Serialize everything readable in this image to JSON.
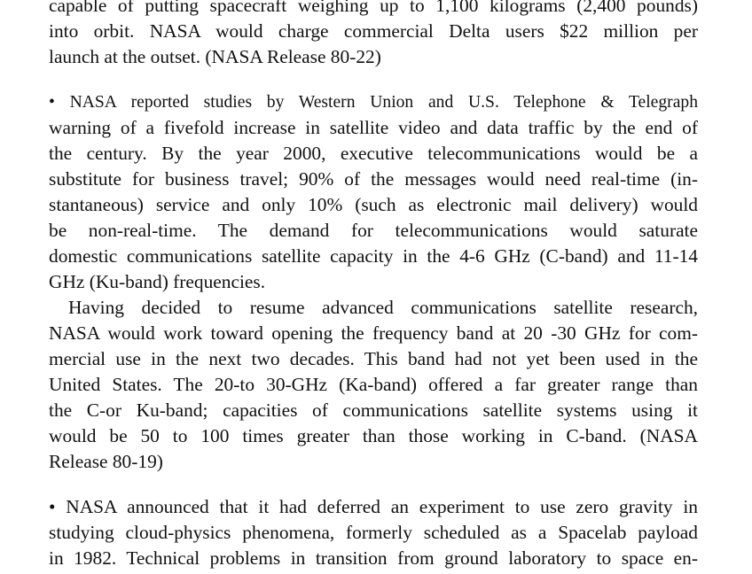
{
  "paragraphs": [
    {
      "lines": [
        "capable of putting spacecraft weighing up to 1,100 kilograms (2,400 pounds)",
        "into orbit. NASA would charge commercial Delta users $22 million per",
        "launch at the outset. (NASA Release 80-22)"
      ]
    },
    {
      "lines": [
        "• NASA reported studies by Western Union and U.S. Telephone & Telegraph",
        "warning of a fivefold increase in satellite video and data traffic by the end of",
        "the century. By the year 2000, executive telecommunications would be a",
        "substitute for business travel; 90% of the messages would need real-time (in-",
        "stantaneous) service and only 10% (such as electronic mail delivery) would",
        "be non-real-time. The demand for telecommunications would saturate",
        "domestic communications satellite capacity in the 4-6 GHz (C-band) and 11-14",
        "GHz (Ku-band) frequencies."
      ]
    },
    {
      "lines": [
        "Having decided to resume advanced communications satellite research,",
        "NASA would work toward opening the frequency band at 20 -30 GHz for com-",
        "mercial use in the next two decades. This band had not yet been used in the",
        "United States. The 20-to 30-GHz (Ka-band) offered a far greater range than",
        "the C-or Ku-band; capacities of communications satellite systems using it",
        "would be 50 to 100 times greater than those working in C-band. (NASA",
        "Release 80-19)"
      ]
    },
    {
      "lines": [
        "• NASA announced that it had deferred an experiment to use zero gravity in",
        "studying cloud-physics phenomena, formerly scheduled as a Spacelab payload",
        "in 1982. Technical problems in transition from ground laboratory to space en-"
      ]
    }
  ]
}
